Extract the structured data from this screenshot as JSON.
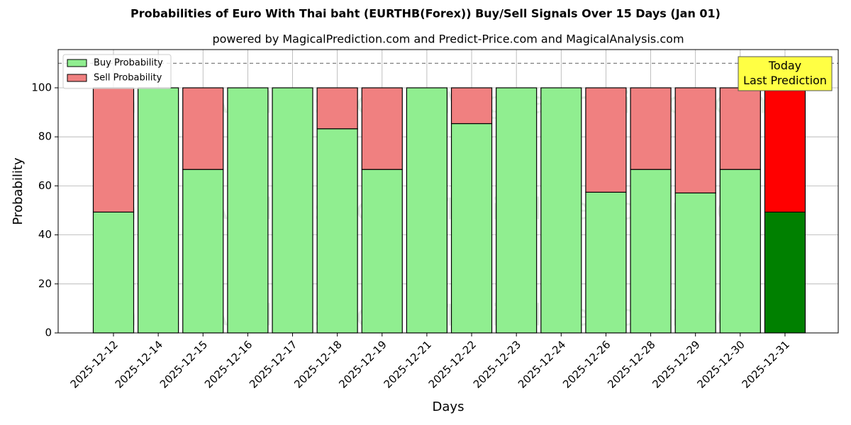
{
  "chart_data": {
    "type": "stacked_bar",
    "title": "Probabilities of Euro With Thai baht (EURTHB(Forex)) Buy/Sell Signals Over 15 Days (Jan 01)",
    "subtitle": "powered by MagicalPrediction.com and Predict-Price.com and MagicalAnalysis.com",
    "x_label": "Days",
    "y_label": "Probability",
    "categories": [
      "2025-12-12",
      "2025-12-14",
      "2025-12-15",
      "2025-12-16",
      "2025-12-17",
      "2025-12-18",
      "2025-12-19",
      "2025-12-21",
      "2025-12-22",
      "2025-12-23",
      "2025-12-24",
      "2025-12-26",
      "2025-12-28",
      "2025-12-29",
      "2025-12-30",
      "2025-12-31"
    ],
    "series": [
      {
        "name": "Buy Probability",
        "color": "#90ee90",
        "colors": [
          "#90ee90",
          "#90ee90",
          "#90ee90",
          "#90ee90",
          "#90ee90",
          "#90ee90",
          "#90ee90",
          "#90ee90",
          "#90ee90",
          "#90ee90",
          "#90ee90",
          "#90ee90",
          "#90ee90",
          "#90ee90",
          "#90ee90",
          "#008000"
        ],
        "values": [
          49.3,
          100,
          66.7,
          100,
          100,
          83.3,
          66.7,
          100,
          85.4,
          100,
          100,
          57.4,
          66.7,
          57.1,
          66.7,
          49.3
        ]
      },
      {
        "name": "Sell Probability",
        "color": "#f08080",
        "colors": [
          "#f08080",
          "#f08080",
          "#f08080",
          "#f08080",
          "#f08080",
          "#f08080",
          "#f08080",
          "#f08080",
          "#f08080",
          "#f08080",
          "#f08080",
          "#f08080",
          "#f08080",
          "#f08080",
          "#f08080",
          "#ff0000"
        ],
        "values": [
          50.7,
          0,
          33.3,
          0,
          0,
          16.7,
          33.3,
          0,
          14.6,
          0,
          0,
          42.6,
          33.3,
          42.9,
          33.3,
          50.7
        ]
      }
    ],
    "ylim": [
      0,
      115.6
    ],
    "yticks": [
      0,
      20,
      40,
      60,
      80,
      100
    ],
    "grid": true,
    "hline": 110,
    "legend": "upper-left",
    "annotation": "Today\nLast Prediction",
    "watermarks": [
      "MagicalAnalysis.com",
      "MagicalPrediction.com"
    ]
  }
}
